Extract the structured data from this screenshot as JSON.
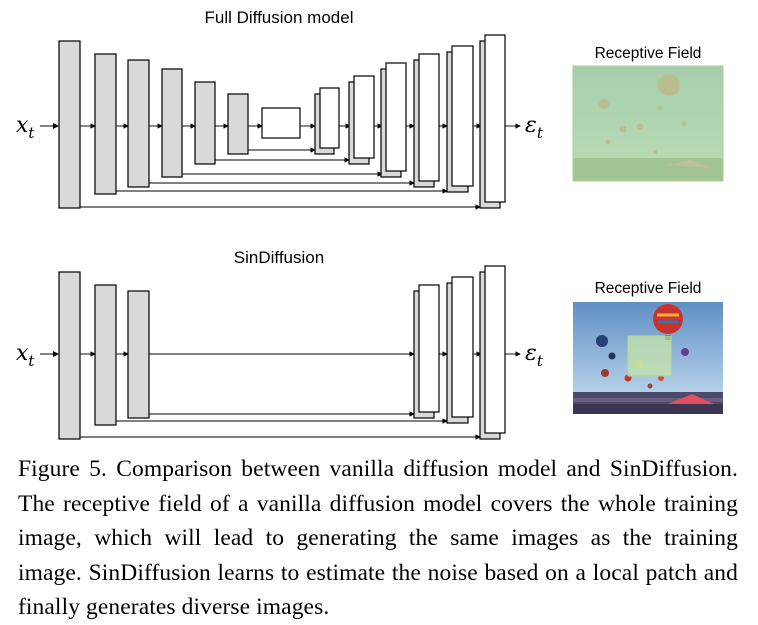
{
  "top_panel": {
    "title": "Full Diffusion model",
    "input_label": "x",
    "input_subscript": "t",
    "output_label": "ε",
    "output_subscript": "t",
    "receptive_field_label": "Receptive Field"
  },
  "bottom_panel": {
    "title": "SinDiffusion",
    "input_label": "x",
    "input_subscript": "t",
    "output_label": "ε",
    "output_subscript": "t",
    "receptive_field_label": "Receptive Field"
  },
  "caption": "Figure 5. Comparison between vanilla diffusion model and SinDiffusion. The receptive field of a vanilla diffusion model covers the whole training image, which will lead to generating the same images as the training image. SinDiffusion learns to estimate the noise based on a local patch and finally generates diverse images.",
  "colors": {
    "encoder_fill": "#d9d9d9",
    "decoder_fill": "#ffffff",
    "stroke": "#000000",
    "receptive_overlay": "#b7dca7",
    "sky": "#8fb4d6"
  }
}
